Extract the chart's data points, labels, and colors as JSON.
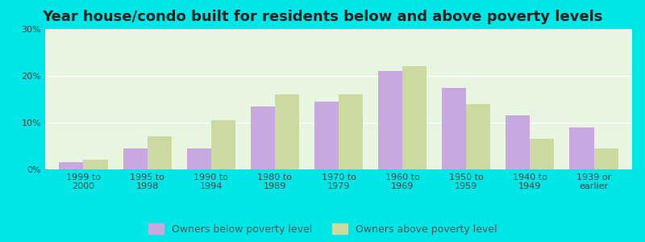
{
  "title": "Year house/condo built for residents below and above poverty levels",
  "categories": [
    "1999 to\n2000",
    "1995 to\n1998",
    "1990 to\n1994",
    "1980 to\n1989",
    "1970 to\n1979",
    "1960 to\n1969",
    "1950 to\n1959",
    "1940 to\n1949",
    "1939 or\nearlier"
  ],
  "below_poverty": [
    1.5,
    4.5,
    4.5,
    13.5,
    14.5,
    21.0,
    17.5,
    11.5,
    9.0
  ],
  "above_poverty": [
    2.0,
    7.0,
    10.5,
    16.0,
    16.0,
    22.0,
    14.0,
    6.5,
    4.5
  ],
  "below_color": "#c9a8e0",
  "above_color": "#ccd9a0",
  "ylim": [
    0,
    30
  ],
  "yticks": [
    0,
    10,
    20,
    30
  ],
  "ytick_labels": [
    "0%",
    "10%",
    "20%",
    "30%"
  ],
  "plot_bg": "#e8f5e0",
  "outer_bg": "#00e5e5",
  "bar_width": 0.38,
  "legend_below_label": "Owners below poverty level",
  "legend_above_label": "Owners above poverty level",
  "title_fontsize": 13,
  "tick_fontsize": 8,
  "legend_fontsize": 9
}
